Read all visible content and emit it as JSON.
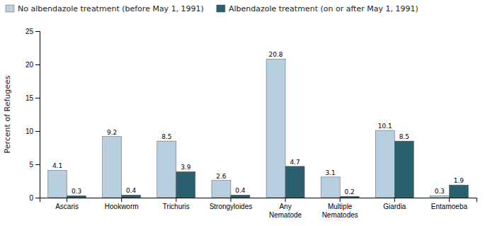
{
  "chart_data": {
    "type": "bar",
    "categories": [
      "Ascaris",
      "Hookworm",
      "Trichuris",
      "Strongyloides",
      "Any\nNematode",
      "Multiple\nNematodes",
      "Giardia",
      "Entamoeba"
    ],
    "series": [
      {
        "name": "No albendazole treatment (before May 1, 1991)",
        "color": "#b8cfe0",
        "values": [
          4.1,
          9.2,
          8.5,
          2.6,
          20.8,
          3.1,
          10.1,
          0.3
        ]
      },
      {
        "name": "Albendazole treatment (on or after May 1, 1991)",
        "color": "#2a5f6d",
        "values": [
          0.3,
          0.4,
          3.9,
          0.4,
          4.7,
          0.2,
          8.5,
          1.9
        ]
      }
    ],
    "ylabel": "Percent of Refugees",
    "ylim": [
      0,
      25
    ],
    "yticks": [
      0,
      5,
      10,
      15,
      20,
      25
    ],
    "grid": false,
    "legend": "top-left",
    "data_labels": true
  }
}
